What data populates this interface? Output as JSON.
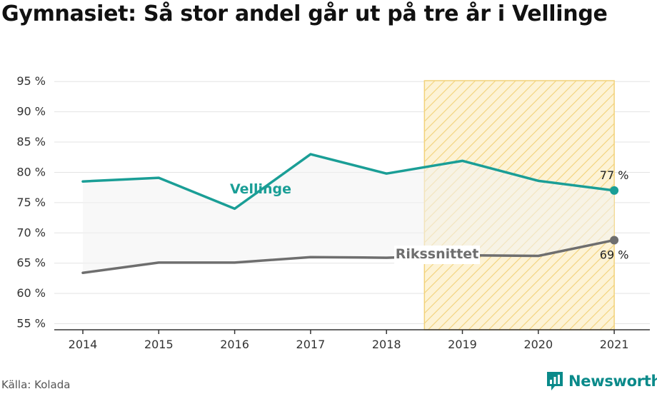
{
  "title": "Gymnasiet: Så stor andel går ut på tre år i Vellinge",
  "source": "Källa: Kolada",
  "brand": {
    "name": "Newsworthy",
    "icon": "chart-logo-icon"
  },
  "colors": {
    "vellinge": "#1a9e96",
    "riks": "#6e6e6e",
    "highlight_fill": "#fdf3d6",
    "highlight_stripe": "#f2d27a",
    "band": "#f3f3f3",
    "grid": "#e3e3e3"
  },
  "chart_data": {
    "type": "line",
    "x": [
      "2014",
      "2015",
      "2016",
      "2017",
      "2018",
      "2019",
      "2020",
      "2021"
    ],
    "series": [
      {
        "name": "Vellinge",
        "values": [
          78.5,
          79.1,
          74.0,
          83.0,
          79.8,
          81.9,
          78.6,
          77.0
        ]
      },
      {
        "name": "Rikssnittet",
        "values": [
          63.4,
          65.1,
          65.1,
          66.0,
          65.9,
          66.3,
          66.2,
          68.8
        ]
      }
    ],
    "y_ticks": [
      "95 %",
      "90 %",
      "85 %",
      "80 %",
      "75 %",
      "70 %",
      "65 %",
      "60 %",
      "55 %"
    ],
    "y_tick_values": [
      95,
      90,
      85,
      80,
      75,
      70,
      65,
      60,
      55
    ],
    "ylim": [
      54,
      95.5
    ],
    "end_labels": [
      "77 %",
      "69 %"
    ],
    "highlight_range": [
      "2019",
      "2021"
    ],
    "grid": true,
    "legend": "inline"
  }
}
